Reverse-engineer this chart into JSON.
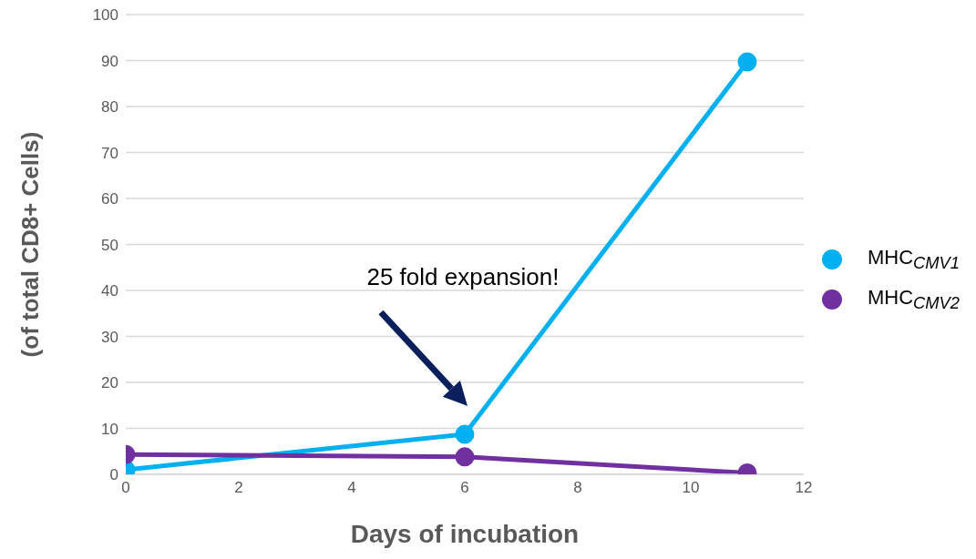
{
  "chart_data": {
    "type": "line",
    "xlabel": "Days of incubation",
    "ylabel": "(of total CD8+ Cells)",
    "xlim": [
      0,
      12
    ],
    "xticks": [
      0,
      2,
      4,
      6,
      8,
      10,
      12
    ],
    "ylim": [
      0,
      100
    ],
    "yticks": [
      0,
      10,
      20,
      30,
      40,
      50,
      60,
      70,
      80,
      90,
      100
    ],
    "grid": "y",
    "legend": "right",
    "marker": "circle",
    "line_style": "solid",
    "annotations": [
      "25 fold expansion!"
    ],
    "series": [
      {
        "name": "MHC$_{CMV1}$",
        "color": "#00b0f0",
        "x": [
          0,
          6,
          11
        ],
        "values": [
          1,
          8.7,
          89.7
        ]
      },
      {
        "name": "MHC$_{CMV2}$",
        "color": "#7030a0",
        "x": [
          0,
          6,
          11
        ],
        "values": [
          4.3,
          3.8,
          0.3
        ]
      }
    ]
  }
}
